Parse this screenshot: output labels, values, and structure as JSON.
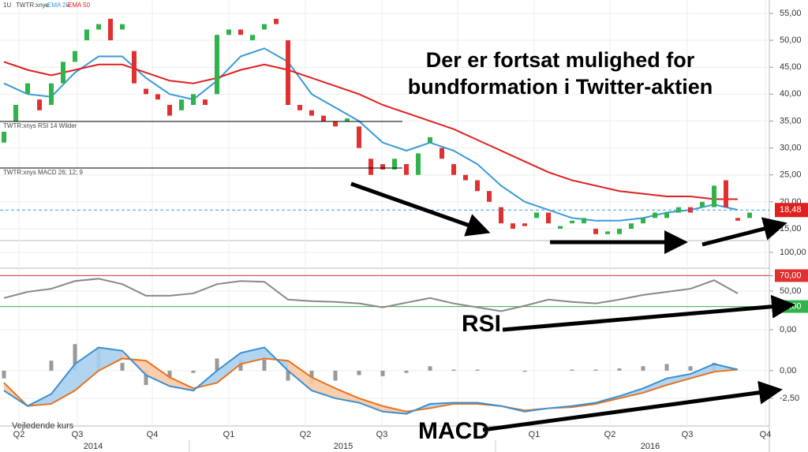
{
  "header": {
    "interval": "1U",
    "symbol": "TWTR:xnys"
  },
  "annotations": {
    "headline": [
      "Der er fortsat mulighed for",
      "bundformation i Twitter-aktien"
    ],
    "rsi": "RSI",
    "macd": "MACD"
  },
  "chart_data": [
    {
      "type": "candlestick",
      "open": [
        31,
        35,
        40,
        39,
        38,
        42,
        46,
        50,
        52,
        54,
        52,
        48,
        41,
        40,
        38,
        37,
        38,
        39,
        40,
        51,
        52,
        50,
        52,
        54,
        50,
        38,
        37,
        36,
        35,
        35,
        34,
        28,
        27,
        26,
        27,
        25,
        31,
        30,
        27,
        25,
        24,
        22,
        19,
        16,
        16,
        17,
        18,
        15,
        16,
        16,
        15,
        14,
        14,
        15,
        16,
        17,
        17,
        18,
        19,
        19,
        19,
        24,
        17,
        17
      ],
      "close": [
        33,
        38,
        42,
        37,
        42,
        46,
        48,
        52,
        53,
        50,
        53,
        42,
        40,
        39,
        36,
        39,
        40,
        38,
        51,
        52,
        51,
        51,
        53,
        53,
        38,
        37,
        36,
        35,
        34,
        35.5,
        30,
        25,
        26,
        28,
        25,
        29,
        32,
        28,
        25,
        24,
        22,
        20,
        16,
        15,
        15.5,
        18,
        16,
        15.5,
        16.5,
        17,
        14,
        14.5,
        15,
        16,
        17,
        18,
        18,
        19,
        18,
        20,
        23,
        19,
        16.5,
        18
      ],
      "up_color": "#2fb34a",
      "down_color": "#e03030",
      "series": [
        {
          "name": "EMA 20",
          "color": "#3a9ad9",
          "values": [
            42,
            40,
            39.5,
            44,
            47,
            47,
            43,
            40,
            39,
            42.5,
            47,
            48.5,
            46,
            40,
            37.5,
            35,
            31,
            29.5,
            31,
            29.5,
            27,
            23,
            20,
            18.5,
            17,
            16.5,
            16.5,
            17,
            18,
            18.5,
            19.5,
            18.5
          ]
        },
        {
          "name": "EMA 50",
          "color": "#e02020",
          "values": [
            46,
            44.5,
            43.5,
            44.5,
            45.5,
            45.5,
            44,
            42.5,
            42,
            43,
            44.5,
            45.5,
            44.5,
            43,
            41.5,
            40,
            38,
            36.5,
            35,
            33.5,
            31.5,
            29.5,
            27.5,
            25.5,
            24,
            23,
            22,
            21.5,
            21,
            21,
            20.5,
            20.5
          ]
        }
      ],
      "last_price": {
        "value": 18.48,
        "label": "18,48"
      },
      "ylim": [
        12.8,
        56.75
      ],
      "yticks": [
        {
          "value": 55,
          "label": "55,00"
        },
        {
          "value": 50,
          "label": "50,00"
        },
        {
          "value": 45,
          "label": "45,00"
        },
        {
          "value": 40,
          "label": "40,00"
        },
        {
          "value": 35,
          "label": "35,00"
        },
        {
          "value": 30,
          "label": "30,00"
        },
        {
          "value": 25,
          "label": "25,00"
        },
        {
          "value": 20,
          "label": "20,00"
        },
        {
          "value": 15,
          "label": "15,00"
        }
      ]
    },
    {
      "type": "line",
      "title": "TWTR:xnys RSI 14 Wilder",
      "series": [
        {
          "color": "#888888",
          "values": [
            41,
            49,
            53,
            63,
            66,
            59,
            44,
            44,
            47,
            59,
            63,
            62,
            39,
            37,
            36,
            34,
            29,
            35,
            41,
            34,
            29,
            24,
            31,
            39,
            36,
            34,
            39,
            45,
            49,
            53,
            64,
            47
          ]
        }
      ],
      "bands": [
        {
          "value": 70,
          "color": "#e03030"
        },
        {
          "value": 30,
          "color": "#2fb34a"
        }
      ],
      "ylim": [
        0,
        100
      ],
      "yticks": [
        {
          "value": 100,
          "label": "100,00"
        },
        {
          "value": 70,
          "label": "70,00"
        },
        {
          "value": 50,
          "label": "50,00"
        },
        {
          "value": 30,
          "label": "30,00"
        },
        {
          "value": 0,
          "label": "0,00"
        }
      ]
    },
    {
      "type": "macd",
      "title": "TWTR:xnys MACD 26; 12; 9",
      "macd": {
        "color": "#3a8fd0",
        "values": [
          -1.8,
          -3.2,
          -2.1,
          0.6,
          2.1,
          1.8,
          -0.4,
          -1.4,
          -1.8,
          0,
          1.6,
          2.1,
          0,
          -1.8,
          -2.5,
          -2.9,
          -3.7,
          -3.9,
          -3,
          -2.9,
          -2.9,
          -3.2,
          -3.7,
          -3.4,
          -3.2,
          -2.9,
          -2.3,
          -1.6,
          -0.7,
          -0.3,
          0.6,
          0.1
        ]
      },
      "signal": {
        "color": "#e8731e",
        "values": [
          -1.1,
          -3.2,
          -3,
          -1.8,
          0,
          1.1,
          0.9,
          -0.6,
          -1.6,
          -1.1,
          0.6,
          1.1,
          0.9,
          -0.6,
          -1.6,
          -2.5,
          -3.2,
          -3.7,
          -3.4,
          -3,
          -3,
          -3.2,
          -3.6,
          -3.4,
          -3.3,
          -3,
          -2.5,
          -2,
          -1.3,
          -0.7,
          -0.1,
          0.1
        ]
      },
      "histogram": {
        "color": "#999999",
        "values": [
          -0.7,
          0,
          0.9,
          2.4,
          2.1,
          0.7,
          -1.3,
          -0.8,
          -0.2,
          1.1,
          1,
          1,
          -0.9,
          -1.2,
          -0.9,
          -0.4,
          -0.5,
          -0.2,
          0.4,
          0.1,
          0.1,
          0,
          -0.1,
          0,
          0.1,
          0.1,
          0.2,
          0.4,
          0.6,
          0.4,
          0.7,
          0
        ]
      },
      "ylim": [
        -5,
        3.7
      ],
      "yticks": [
        {
          "value": 0,
          "label": "0,00"
        },
        {
          "value": -2.5,
          "label": "-2,50"
        }
      ],
      "footer": "Vejledende kurs",
      "quarter_labels": [
        "Q2",
        "Q3",
        "Q4",
        "Q1",
        "Q2",
        "Q3",
        "Q1",
        "Q2",
        "Q3",
        "Q4"
      ],
      "year_labels": [
        "2014",
        "2015",
        "2016"
      ]
    }
  ]
}
